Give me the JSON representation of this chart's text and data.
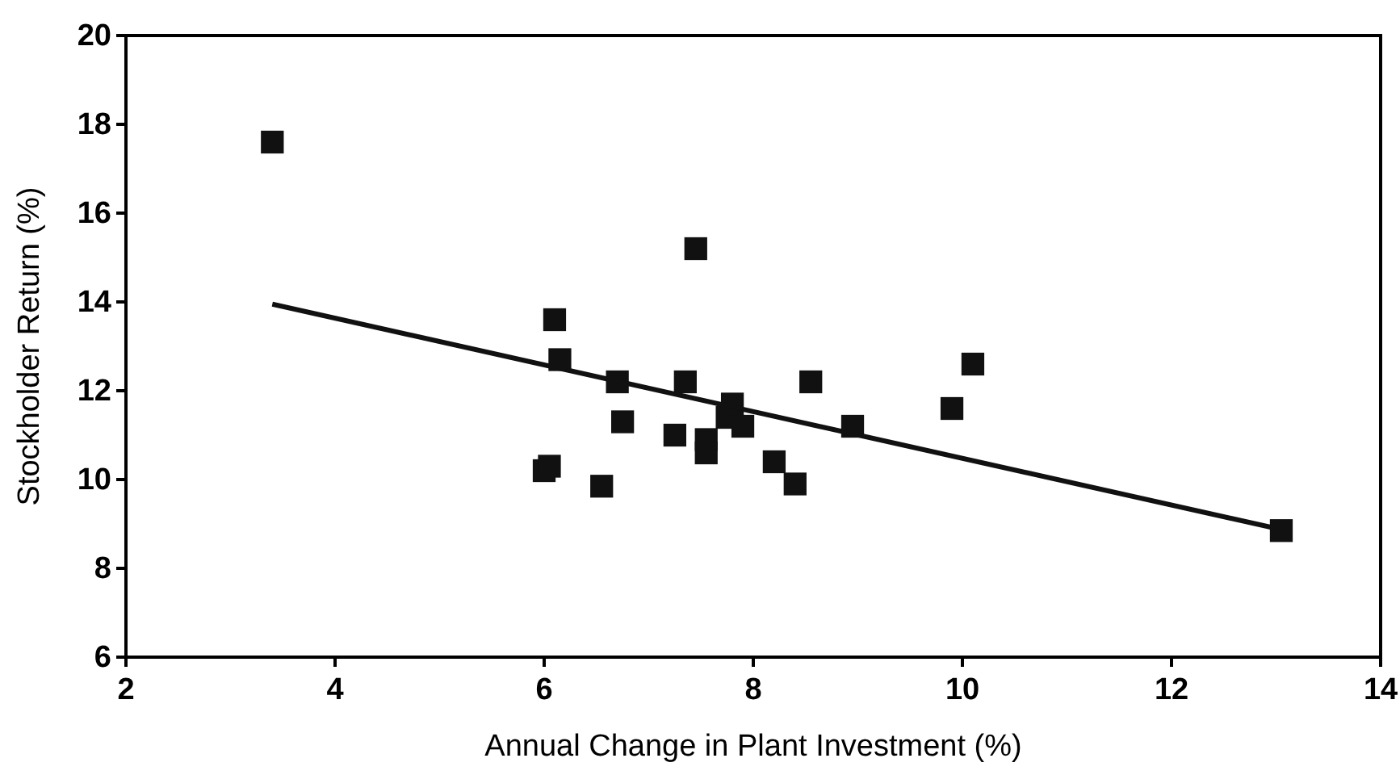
{
  "chart_data": {
    "type": "scatter",
    "xlabel": "Annual Change in Plant Investment (%)",
    "ylabel": "Stockholder Return (%)",
    "xlim": [
      2,
      14
    ],
    "xticks": [
      2,
      4,
      6,
      8,
      10,
      12,
      14
    ],
    "ylim": [
      6,
      20
    ],
    "yticks": [
      6,
      8,
      10,
      12,
      14,
      16,
      18,
      20
    ],
    "grid": false,
    "series": [
      {
        "marker": "square",
        "color": "#111111",
        "x": [
          3.4,
          7.45,
          6.1,
          6.15,
          6.7,
          7.35,
          8.55,
          7.8,
          6.75,
          7.25,
          7.55,
          7.55,
          7.75,
          7.9,
          8.95,
          8.2,
          8.4,
          6.0,
          6.05,
          6.55,
          10.1,
          9.9,
          13.05
        ],
        "values": [
          17.6,
          15.2,
          13.6,
          12.7,
          12.2,
          12.2,
          12.2,
          11.7,
          11.3,
          11.0,
          10.9,
          10.6,
          11.4,
          11.2,
          11.2,
          10.4,
          9.9,
          10.2,
          10.3,
          9.85,
          12.6,
          11.6,
          8.85
        ]
      },
      {
        "type": "line",
        "color": "#111111",
        "x": [
          3.4,
          13.0
        ],
        "values": [
          13.95,
          8.9
        ]
      }
    ]
  }
}
